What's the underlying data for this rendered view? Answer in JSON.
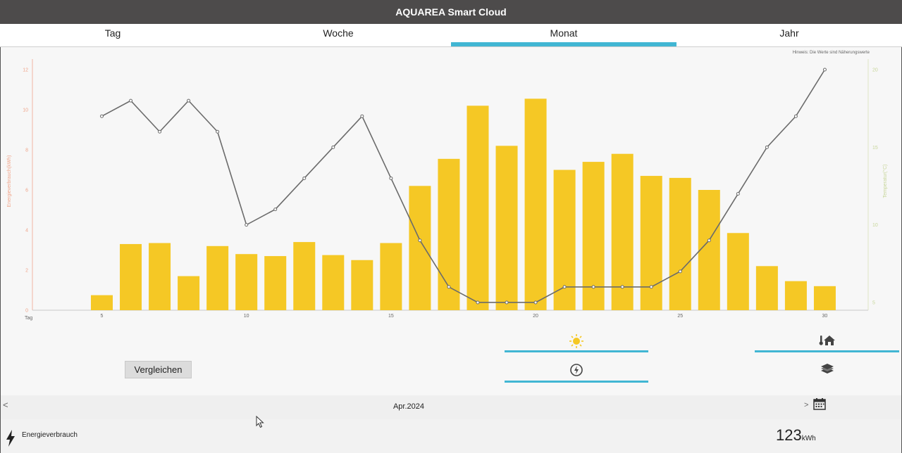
{
  "app": {
    "title": "AQUAREA Smart Cloud"
  },
  "tabs": [
    {
      "label": "Tag",
      "active": false
    },
    {
      "label": "Woche",
      "active": false
    },
    {
      "label": "Monat",
      "active": true
    },
    {
      "label": "Jahr",
      "active": false
    }
  ],
  "note": "Hinweis: Die Werte sind Näherungswerte",
  "chart_data": {
    "type": "bar",
    "x_label": "Tag",
    "x_range": [
      1,
      30
    ],
    "x_ticks": [
      5,
      10,
      15,
      20,
      25,
      30
    ],
    "bars": {
      "name": "Energieverbrauch(kWh)",
      "color": "#f5c825",
      "x": [
        5,
        6,
        7,
        8,
        9,
        10,
        11,
        12,
        13,
        14,
        15,
        16,
        17,
        18,
        19,
        20,
        21,
        22,
        23,
        24,
        25,
        26,
        27,
        28,
        29,
        30
      ],
      "values": [
        0.75,
        3.3,
        3.35,
        1.7,
        3.2,
        2.8,
        2.7,
        3.4,
        2.75,
        2.5,
        3.35,
        6.2,
        7.55,
        10.2,
        8.2,
        10.55,
        7.0,
        7.4,
        7.8,
        6.7,
        6.6,
        6.0,
        3.85,
        2.2,
        1.45,
        1.2
      ]
    },
    "line": {
      "name": "Temperatur(°C)",
      "color": "#6b6b6b",
      "x": [
        5,
        6,
        7,
        8,
        9,
        10,
        11,
        12,
        13,
        14,
        15,
        16,
        17,
        18,
        19,
        20,
        21,
        22,
        23,
        24,
        25,
        26,
        27,
        28,
        29,
        30
      ],
      "values": [
        17,
        18,
        16,
        18,
        16,
        10,
        11,
        13,
        15,
        17,
        13,
        9,
        6,
        5,
        5,
        5,
        6,
        6,
        6,
        6,
        7,
        9,
        12,
        15,
        17,
        20
      ]
    },
    "y_left": {
      "label": "Energieverbrauch(kWh)",
      "min": 0,
      "max": 12,
      "ticks": [
        0,
        2,
        4,
        6,
        8,
        10,
        12
      ],
      "color": "#f0a48a"
    },
    "y_right": {
      "label": "Temperatur(°C)",
      "min": 4.5,
      "max": 20,
      "ticks": [
        5,
        10,
        15,
        20
      ],
      "color": "#c7d69a"
    }
  },
  "controls": {
    "compare_label": "Vergleichen",
    "icons": [
      "sun-icon",
      "home-thermometer-icon",
      "power-cycle-icon",
      "layers-icon"
    ]
  },
  "period": {
    "label": "Apr.2024",
    "prev": "<",
    "next": ">"
  },
  "summary": {
    "label": "Energieverbrauch",
    "value": "123",
    "unit": "kWh"
  }
}
